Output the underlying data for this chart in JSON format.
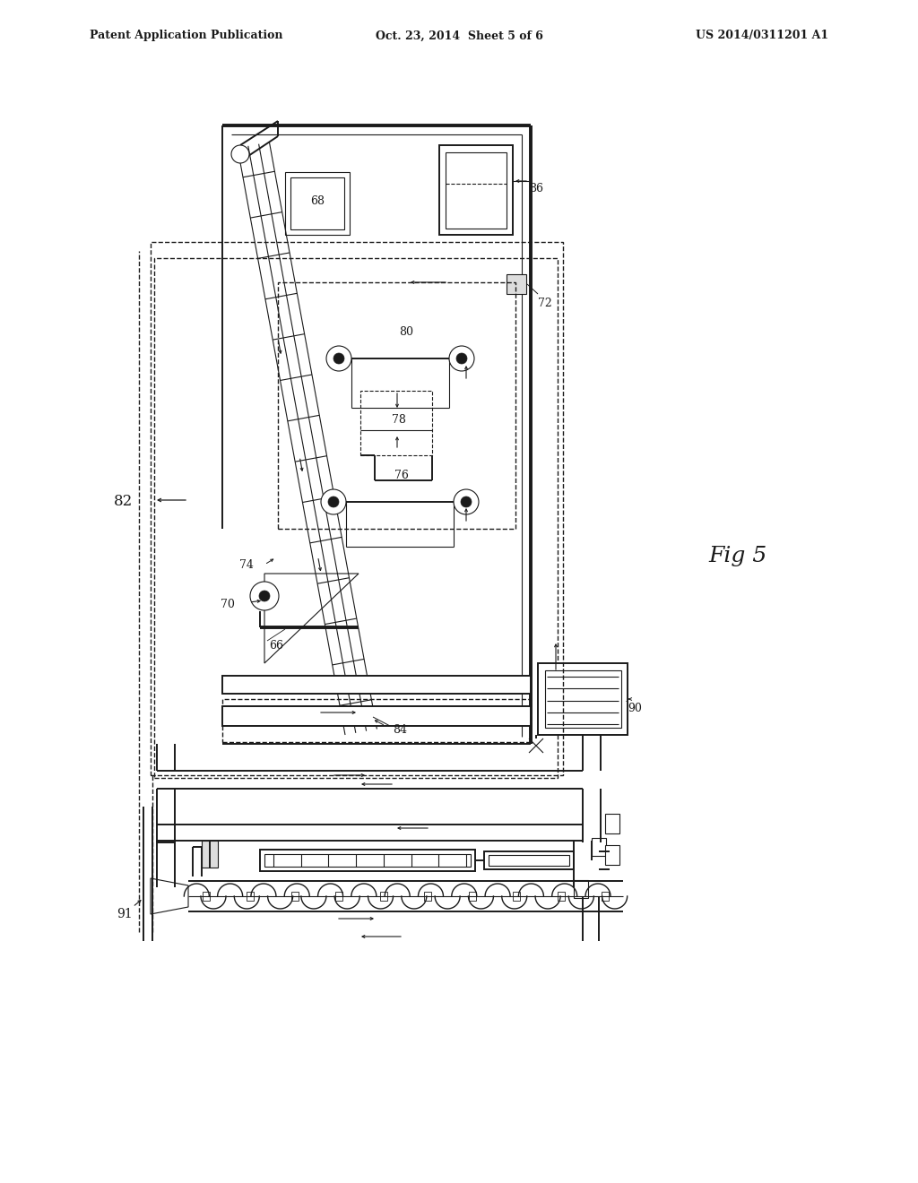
{
  "bg_color": "#ffffff",
  "lc": "#1a1a1a",
  "header_left": "Patent Application Publication",
  "header_center": "Oct. 23, 2014  Sheet 5 of 6",
  "header_right": "US 2014/0311201 A1",
  "fig_label": "Fig 5",
  "lw_main": 1.4,
  "lw_thick": 2.8,
  "lw_thin": 0.8,
  "lw_dashed": 1.0
}
